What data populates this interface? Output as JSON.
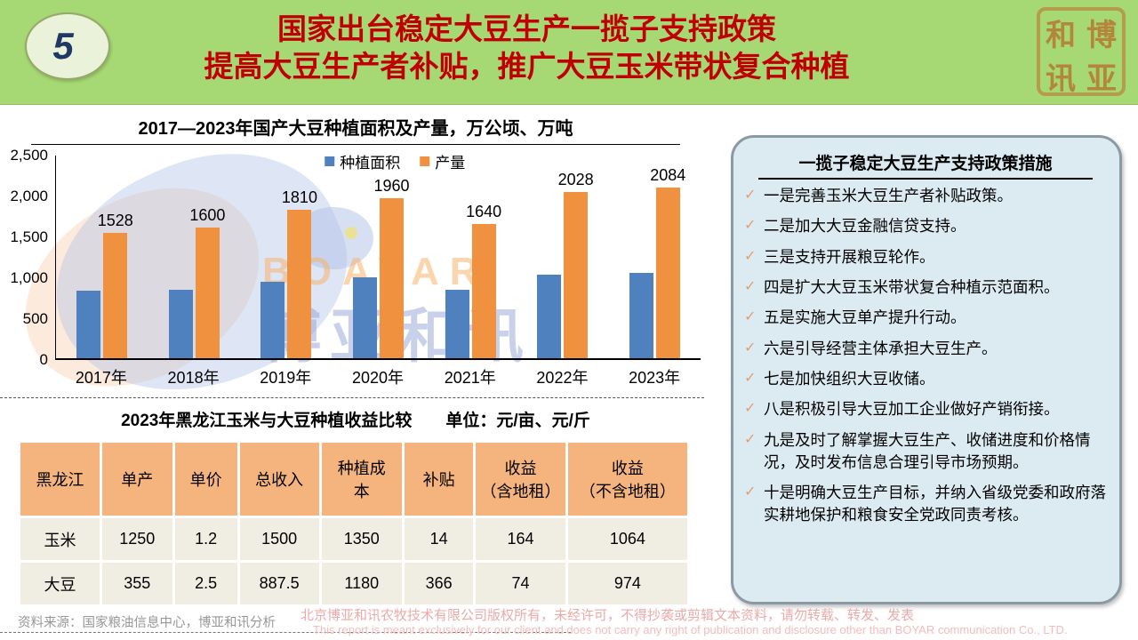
{
  "slide": {
    "page_number": "5",
    "title_line1": "国家出台稳定大豆生产一揽子支持政策",
    "title_line2": "提高大豆生产者补贴，推广大豆玉米带状复合种植",
    "title_color": "#c00000",
    "header_bg": "#a6d873",
    "logo_seal_chars": [
      "和",
      "博",
      "讯",
      "亚"
    ]
  },
  "chart_data": {
    "type": "bar",
    "title": "2017—2023年国产大豆种植面积及产量，万公顷、万吨",
    "categories": [
      "2017年",
      "2018年",
      "2019年",
      "2020年",
      "2021年",
      "2022年",
      "2023年"
    ],
    "series": [
      {
        "name": "种植面积",
        "color": "#4e81bd",
        "values": [
          825,
          841,
          933,
          988,
          841,
          1024,
          1047
        ],
        "labels_visible": false
      },
      {
        "name": "产量",
        "color": "#f0913f",
        "values": [
          1528,
          1600,
          1810,
          1960,
          1640,
          2028,
          2084
        ],
        "labels_visible": true
      }
    ],
    "ylim": [
      0,
      2500
    ],
    "ytick_step": 500,
    "yticks": [
      "0",
      "500",
      "1,000",
      "1,500",
      "2,000",
      "2,500"
    ],
    "legend_position": "top",
    "grid": false
  },
  "watermark": {
    "chart_text_en": "BOAYAR",
    "chart_text_cn": "博亚和讯",
    "footer_line1": "北京博亚和讯农牧技术有限公司版权所有，未经许可，不得抄袭或剪辑文本资料，请勿转载、转发、发表",
    "footer_line2": "This report is meant exclusively for our client and does not carry any right of publication and disclosure other than BOYAR communication Co., LTD."
  },
  "table": {
    "title": "2023年黑龙江玉米与大豆种植收益比较　　单位：元/亩、元/斤",
    "headers": [
      "黑龙江",
      "单产",
      "单价",
      "总收入",
      "种植成\n本",
      "补贴",
      "收益\n（含地租）",
      "收益\n（不含地租）"
    ],
    "col_widths_pct": [
      12.2,
      10.8,
      9.6,
      12.2,
      12.4,
      10.6,
      13.8,
      18.4
    ],
    "header_bg": "#f5b47e",
    "row_bg": "#f0ede3",
    "rows": [
      [
        "玉米",
        "1250",
        "1.2",
        "1500",
        "1350",
        "14",
        "164",
        "1064"
      ],
      [
        "大豆",
        "355",
        "2.5",
        "887.5",
        "1180",
        "366",
        "74",
        "974"
      ]
    ]
  },
  "policy_panel": {
    "title": "一揽子稳定大豆生产支持政策措施",
    "check_color": "#dfa06e",
    "bg": "#dcebf2",
    "items": [
      "一是完善玉米大豆生产者补贴政策。",
      "二是加大大豆金融信贷支持。",
      "三是支持开展粮豆轮作。",
      "四是扩大大豆玉米带状复合种植示范面积。",
      "五是实施大豆单产提升行动。",
      "六是引导经营主体承担大豆生产。",
      "七是加快组织大豆收储。",
      "八是积极引导大豆加工企业做好产销衔接。",
      "九是及时了解掌握大豆生产、收储进度和价格情况，及时发布信息合理引导市场预期。",
      "十是明确大豆生产目标，并纳入省级党委和政府落实耕地保护和粮食安全党政同责考核。"
    ]
  },
  "footer": {
    "source": "资料来源：国家粮油信息中心，博亚和讯分析"
  }
}
